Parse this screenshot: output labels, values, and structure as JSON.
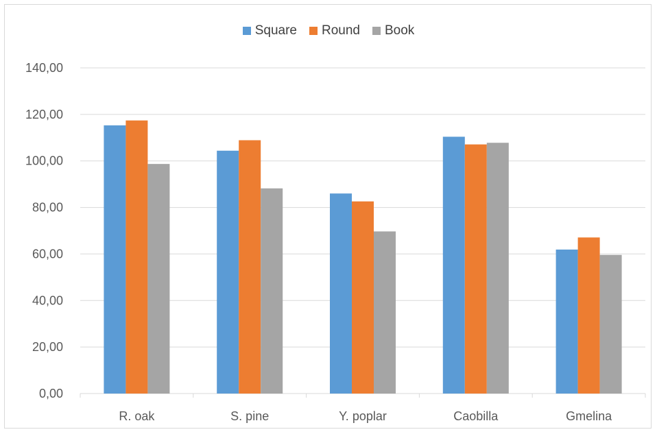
{
  "chart_data": {
    "type": "bar",
    "title": "",
    "xlabel": "",
    "ylabel": "",
    "categories": [
      "R. oak",
      "S. pine",
      "Y. poplar",
      "Caobilla",
      "Gmelina"
    ],
    "series": [
      {
        "name": "Square",
        "color": "#5b9bd5",
        "values": [
          115.3,
          104.4,
          86.0,
          110.4,
          61.9
        ]
      },
      {
        "name": "Round",
        "color": "#ed7d31",
        "values": [
          117.4,
          108.9,
          82.6,
          107.1,
          67.1
        ]
      },
      {
        "name": "Book",
        "color": "#a5a5a5",
        "values": [
          98.7,
          88.2,
          69.7,
          107.8,
          59.6
        ]
      }
    ],
    "ylim": [
      0,
      140
    ],
    "yticks": [
      "0,00",
      "20,00",
      "40,00",
      "60,00",
      "80,00",
      "100,00",
      "120,00",
      "140,00"
    ],
    "grid": true,
    "legend_position": "top"
  }
}
